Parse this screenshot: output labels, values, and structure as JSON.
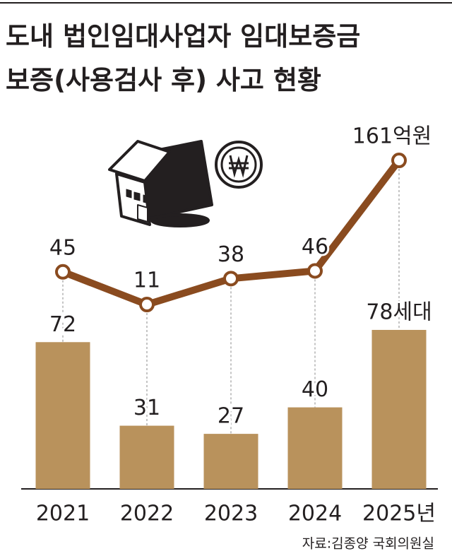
{
  "title": [
    "도내 법인임대사업자 임대보증금",
    "보증(사용검사 후) 사고 현황"
  ],
  "source": "자료:김종양 국회의원실",
  "chart_data": {
    "type": "combo",
    "categories": [
      "2021",
      "2022",
      "2023",
      "2024",
      "2025년"
    ],
    "series": [
      {
        "type": "bar",
        "color": "#b9925c",
        "values": [
          72,
          31,
          27,
          40,
          78
        ],
        "value_labels": [
          "72",
          "31",
          "27",
          "40",
          "78세대"
        ]
      },
      {
        "type": "line",
        "axis": "y2",
        "color": "#8a4b1f",
        "values": [
          45,
          11,
          38,
          46,
          161
        ],
        "value_labels": [
          "45",
          "11",
          "38",
          "46",
          "161억원"
        ]
      }
    ]
  }
}
